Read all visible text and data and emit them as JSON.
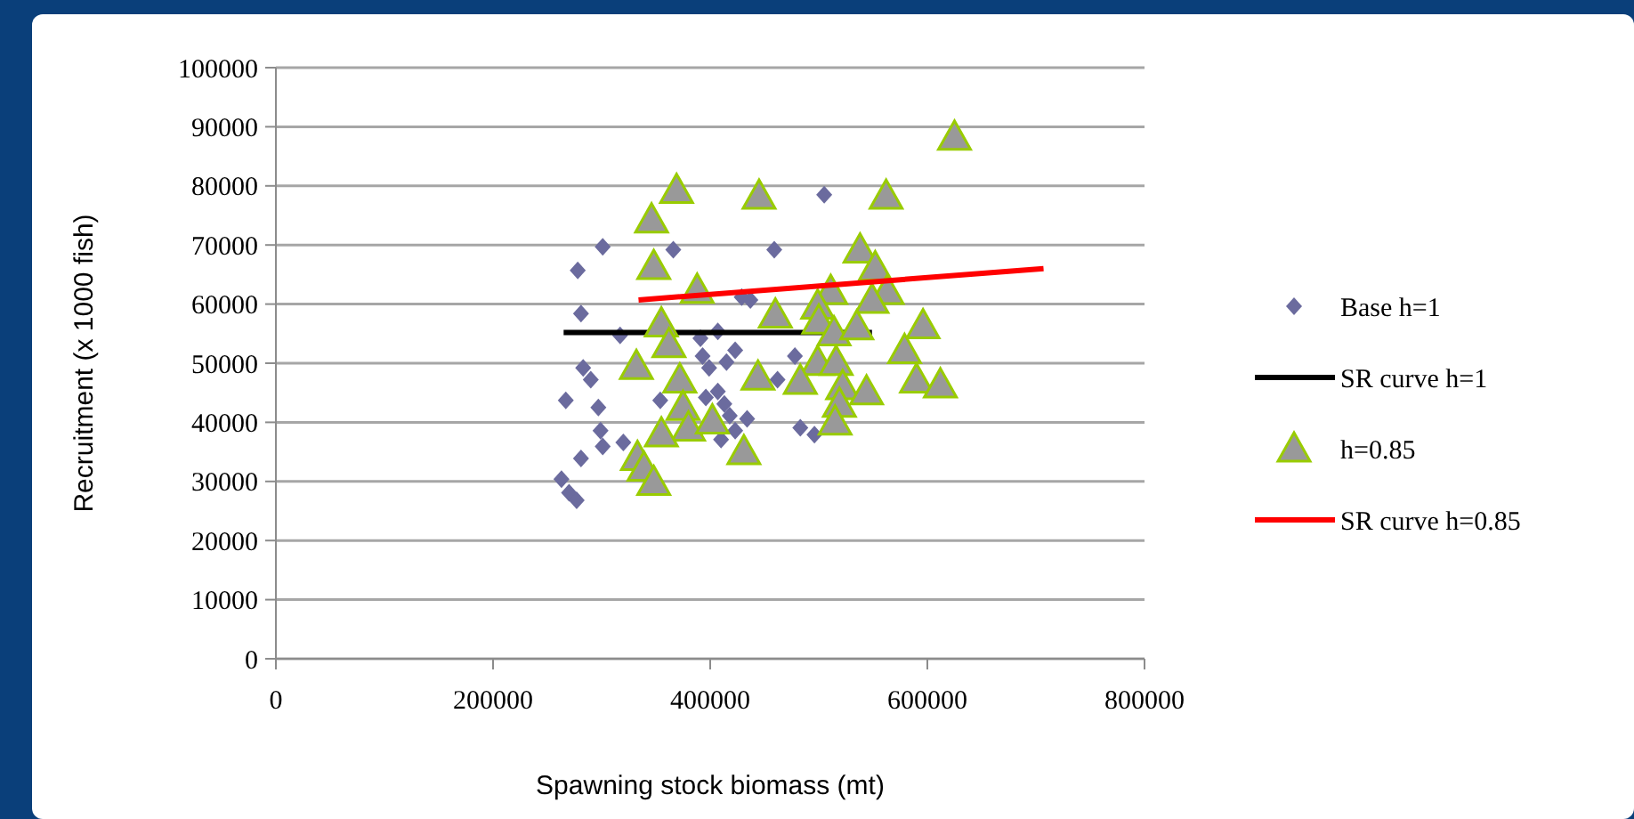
{
  "chart_data": {
    "type": "scatter",
    "xlabel": "Spawning stock biomass (mt)",
    "ylabel": "Recruitment (x 1000 fish)",
    "xlim": [
      0,
      800000
    ],
    "xticks": [
      0,
      200000,
      400000,
      600000,
      800000
    ],
    "ylim": [
      0,
      100000
    ],
    "yticks": [
      0,
      10000,
      20000,
      30000,
      40000,
      50000,
      60000,
      70000,
      80000,
      90000,
      100000
    ],
    "grid": "y",
    "legend": "right",
    "series": [
      {
        "name": "Base h=1",
        "color": "#6b6b9e",
        "marker": "diamond",
        "x": [
          301000,
          278000,
          281000,
          317000,
          366000,
          283000,
          290000,
          267000,
          297000,
          299000,
          301000,
          320000,
          281000,
          263000,
          270000,
          277000,
          354000,
          391000,
          407000,
          393000,
          399000,
          423000,
          415000,
          396000,
          407000,
          413000,
          418000,
          423000,
          410000,
          459000,
          429000,
          462000,
          478000,
          505000,
          437000,
          434000,
          483000,
          496000
        ],
        "values": [
          69700,
          65700,
          58400,
          54700,
          69200,
          49200,
          47200,
          43700,
          42500,
          38600,
          35900,
          36600,
          33900,
          30400,
          28100,
          26800,
          43700,
          54200,
          55400,
          51200,
          49200,
          52200,
          50200,
          44200,
          45200,
          43100,
          41100,
          38600,
          37100,
          69200,
          61200,
          47200,
          51200,
          78500,
          60700,
          40600,
          39100,
          37900
        ]
      },
      {
        "name": "SR curve h=1",
        "color": "#000000",
        "type": "line",
        "x": [
          265000,
          549000
        ],
        "values": [
          55200,
          55200
        ]
      },
      {
        "name": "h=0.85",
        "color": "#999999",
        "marker": "triangle",
        "x": [
          369000,
          346000,
          348000,
          388000,
          355000,
          362000,
          332000,
          372000,
          375000,
          380000,
          355000,
          402000,
          444000,
          460000,
          445000,
          431000,
          333000,
          339000,
          348000,
          625000,
          562000,
          538000,
          552000,
          563000,
          549000,
          511000,
          499000,
          500000,
          514000,
          535000,
          596000,
          579000,
          499000,
          516000,
          483000,
          522000,
          544000,
          590000,
          612000,
          519000,
          515000
        ],
        "values": [
          79300,
          74300,
          66400,
          62400,
          56700,
          53200,
          49500,
          47200,
          42600,
          39100,
          38100,
          40300,
          47700,
          58200,
          78300,
          35100,
          34100,
          32300,
          29900,
          88300,
          78300,
          69200,
          66200,
          62200,
          60700,
          62200,
          59700,
          57200,
          55200,
          56200,
          56400,
          52200,
          50200,
          50200,
          47000,
          46100,
          45200,
          47200,
          46400,
          43100,
          40100
        ]
      },
      {
        "name": "SR curve h=0.85",
        "color": "#ff0000",
        "type": "line",
        "x": [
          334000,
          707000
        ],
        "values": [
          60700,
          66000
        ]
      }
    ]
  }
}
